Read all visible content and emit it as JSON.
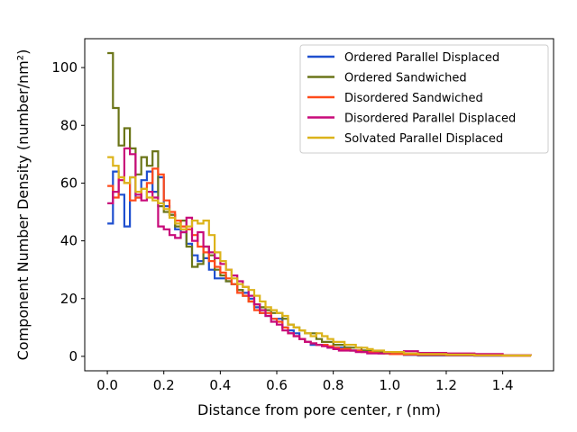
{
  "chart_data": {
    "type": "line",
    "step": true,
    "xlabel": "Distance from pore center, r (nm)",
    "ylabel": "Component Number Density (number/nm²)",
    "xlim": [
      -0.08,
      1.58
    ],
    "ylim": [
      -5,
      110
    ],
    "xticks": [
      "0.0",
      "0.2",
      "0.4",
      "0.6",
      "0.8",
      "1.0",
      "1.2",
      "1.4"
    ],
    "yticks": [
      "0",
      "20",
      "40",
      "60",
      "80",
      "100"
    ],
    "legend_position": "top-right",
    "grid": false,
    "series": [
      {
        "name": "Ordered Parallel Displaced",
        "color": "#1f4fcf",
        "x": [
          0.0,
          0.02,
          0.04,
          0.06,
          0.08,
          0.1,
          0.12,
          0.14,
          0.16,
          0.18,
          0.2,
          0.22,
          0.24,
          0.26,
          0.28,
          0.3,
          0.32,
          0.34,
          0.36,
          0.38,
          0.4,
          0.42,
          0.44,
          0.46,
          0.48,
          0.5,
          0.52,
          0.54,
          0.56,
          0.58,
          0.6,
          0.62,
          0.64,
          0.66,
          0.68,
          0.7,
          0.72,
          0.74,
          0.76,
          0.78,
          0.8,
          0.82,
          0.84,
          0.86,
          0.88,
          0.9,
          0.92,
          0.94,
          0.96,
          0.98,
          1.0,
          1.05,
          1.1,
          1.2,
          1.3,
          1.4,
          1.5
        ],
        "y": [
          46,
          64,
          56,
          45,
          62,
          55,
          61,
          64,
          57,
          62,
          52,
          49,
          44,
          43,
          39,
          35,
          33,
          34,
          30,
          27,
          27,
          26,
          25,
          23,
          22,
          20,
          17,
          15,
          14,
          13,
          13,
          10,
          9,
          8,
          6,
          5,
          4,
          4,
          4,
          3,
          3,
          3,
          3,
          2,
          2,
          2,
          1.5,
          1.5,
          1,
          1,
          1,
          0.5,
          0.3,
          0.3,
          0.2,
          0.2,
          0.2
        ]
      },
      {
        "name": "Ordered Sandwiched",
        "color": "#6b7518",
        "x": [
          0.0,
          0.02,
          0.04,
          0.06,
          0.08,
          0.1,
          0.12,
          0.14,
          0.16,
          0.18,
          0.2,
          0.22,
          0.24,
          0.26,
          0.28,
          0.3,
          0.32,
          0.34,
          0.36,
          0.38,
          0.4,
          0.42,
          0.44,
          0.46,
          0.48,
          0.5,
          0.52,
          0.54,
          0.56,
          0.58,
          0.6,
          0.62,
          0.64,
          0.66,
          0.68,
          0.7,
          0.72,
          0.74,
          0.76,
          0.78,
          0.8,
          0.82,
          0.84,
          0.86,
          0.88,
          0.9,
          0.92,
          0.94,
          0.96,
          0.98,
          1.0,
          1.05,
          1.1,
          1.2,
          1.3,
          1.4,
          1.5
        ],
        "y": [
          105,
          86,
          73,
          79,
          72,
          63,
          69,
          66,
          71,
          52,
          50,
          49,
          45,
          47,
          38,
          31,
          32,
          38,
          35,
          30,
          28,
          26,
          25,
          23,
          21,
          19,
          18,
          17,
          16,
          15,
          15,
          13,
          11,
          10,
          9,
          8,
          8,
          6,
          5,
          5,
          4,
          4,
          3,
          3,
          3,
          2,
          2,
          1.5,
          1.5,
          1,
          1,
          0.8,
          0.6,
          0.5,
          0.4,
          0.3,
          0.3
        ]
      },
      {
        "name": "Disordered Sandwiched",
        "color": "#ff4a1a",
        "x": [
          0.0,
          0.02,
          0.04,
          0.06,
          0.08,
          0.1,
          0.12,
          0.14,
          0.16,
          0.18,
          0.2,
          0.22,
          0.24,
          0.26,
          0.28,
          0.3,
          0.32,
          0.34,
          0.36,
          0.38,
          0.4,
          0.42,
          0.44,
          0.46,
          0.48,
          0.5,
          0.52,
          0.54,
          0.56,
          0.58,
          0.6,
          0.62,
          0.64,
          0.66,
          0.68,
          0.7,
          0.72,
          0.74,
          0.76,
          0.78,
          0.8,
          0.82,
          0.84,
          0.86,
          0.88,
          0.9,
          0.92,
          0.94,
          0.96,
          0.98,
          1.0,
          1.05,
          1.1,
          1.2,
          1.3,
          1.4,
          1.5
        ],
        "y": [
          59,
          55,
          62,
          60,
          54,
          55,
          58,
          60,
          65,
          63,
          54,
          50,
          47,
          45,
          44,
          42,
          38,
          36,
          33,
          31,
          29,
          27,
          25,
          22,
          21,
          19,
          16,
          15,
          15,
          13,
          12,
          10,
          8,
          7,
          6,
          5,
          4.5,
          4,
          4,
          3.5,
          3,
          2.5,
          2.5,
          2,
          2,
          1.5,
          1.5,
          1.2,
          1,
          1,
          0.8,
          0.6,
          0.5,
          0.4,
          0.3,
          0.2,
          0.2
        ]
      },
      {
        "name": "Disordered Parallel Displaced",
        "color": "#c80a7a",
        "x": [
          0.0,
          0.02,
          0.04,
          0.06,
          0.08,
          0.1,
          0.12,
          0.14,
          0.16,
          0.18,
          0.2,
          0.22,
          0.24,
          0.26,
          0.28,
          0.3,
          0.32,
          0.34,
          0.36,
          0.38,
          0.4,
          0.42,
          0.44,
          0.46,
          0.48,
          0.5,
          0.52,
          0.54,
          0.56,
          0.58,
          0.6,
          0.62,
          0.64,
          0.66,
          0.68,
          0.7,
          0.72,
          0.74,
          0.76,
          0.78,
          0.8,
          0.82,
          0.84,
          0.86,
          0.88,
          0.9,
          0.92,
          0.94,
          0.96,
          0.98,
          1.0,
          1.05,
          1.1,
          1.2,
          1.3,
          1.4,
          1.5
        ],
        "y": [
          53,
          57,
          61,
          72,
          70,
          56,
          54,
          57,
          55,
          45,
          44,
          42,
          41,
          43,
          48,
          40,
          43,
          38,
          36,
          34,
          32,
          30,
          28,
          26,
          24,
          21,
          18,
          16,
          14,
          12,
          11,
          9,
          8,
          7,
          6,
          5,
          4.5,
          4,
          3.5,
          3,
          2.5,
          2,
          2,
          2,
          1.5,
          1.5,
          1,
          1,
          1,
          1.2,
          1.5,
          1.8,
          1.2,
          1.0,
          0.8,
          0.4,
          0.2
        ]
      },
      {
        "name": "Solvated Parallel Displaced",
        "color": "#dcb31a",
        "x": [
          0.0,
          0.02,
          0.04,
          0.06,
          0.08,
          0.1,
          0.12,
          0.14,
          0.16,
          0.18,
          0.2,
          0.22,
          0.24,
          0.26,
          0.28,
          0.3,
          0.32,
          0.34,
          0.36,
          0.38,
          0.4,
          0.42,
          0.44,
          0.46,
          0.48,
          0.5,
          0.52,
          0.54,
          0.56,
          0.58,
          0.6,
          0.62,
          0.64,
          0.66,
          0.68,
          0.7,
          0.72,
          0.74,
          0.76,
          0.78,
          0.8,
          0.82,
          0.84,
          0.86,
          0.88,
          0.9,
          0.92,
          0.94,
          0.96,
          0.98,
          1.0,
          1.05,
          1.1,
          1.2,
          1.3,
          1.4,
          1.5
        ],
        "y": [
          69,
          66,
          62,
          60,
          62,
          57,
          58,
          55,
          54,
          53,
          51,
          48,
          46,
          44,
          45,
          47,
          46,
          47,
          42,
          36,
          33,
          30,
          27,
          25,
          24,
          23,
          21,
          19,
          17,
          16,
          15,
          14,
          11,
          10,
          9,
          8,
          7,
          8,
          7,
          6,
          5,
          5,
          4,
          4,
          3,
          3,
          2.5,
          2,
          2,
          1.5,
          1.5,
          1,
          0.8,
          0.6,
          0.4,
          0.3,
          0.2
        ]
      }
    ]
  }
}
